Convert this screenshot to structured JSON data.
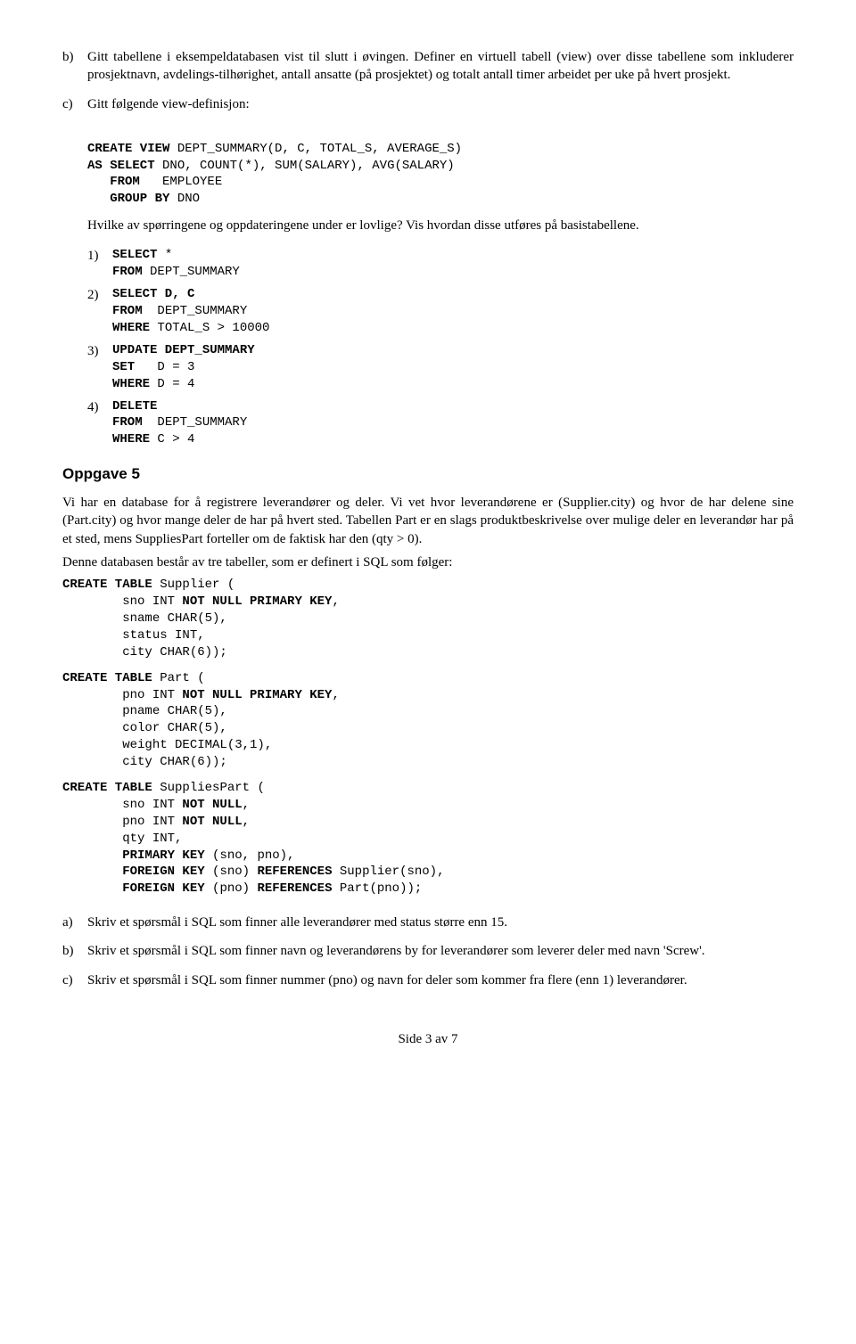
{
  "b": {
    "marker": "b)",
    "text": "Gitt tabellene i eksempeldatabasen vist til slutt i øvingen. Definer en virtuell tabell (view) over disse tabellene som inkluderer prosjektnavn, avdelings-tilhørighet, antall ansatte (på prosjektet) og totalt antall timer arbeidet per uke på hvert prosjekt."
  },
  "c": {
    "marker": "c)",
    "lead": "Gitt følgende view-definisjon:",
    "code": {
      "l1a": "CREATE VIEW",
      "l1b": " DEPT_SUMMARY(D, C, TOTAL_S, AVERAGE_S)",
      "l2a": "AS SELECT",
      "l2b": " DNO, COUNT(*), SUM(SALARY), AVG(SALARY)",
      "l3a": "   FROM",
      "l3b": "   EMPLOYEE",
      "l4a": "   GROUP BY",
      "l4b": " DNO"
    },
    "question": "Hvilke av spørringene og oppdateringene under er lovlige? Vis hvordan disse utføres på basistabellene.",
    "q1": {
      "marker": "1)",
      "l1a": "SELECT",
      "l1b": " *",
      "l2a": "FROM",
      "l2b": " DEPT_SUMMARY"
    },
    "q2": {
      "marker": "2)",
      "l1a": "SELECT D, C",
      "l2a": "FROM",
      "l2b": "  DEPT_SUMMARY",
      "l3a": "WHERE",
      "l3b": " TOTAL_S > 10000"
    },
    "q3": {
      "marker": "3)",
      "l1a": "UPDATE DEPT_SUMMARY",
      "l2a": "SET",
      "l2b": "   D = 3",
      "l3a": "WHERE",
      "l3b": " D = 4"
    },
    "q4": {
      "marker": "4)",
      "l1a": "DELETE",
      "l2a": "FROM",
      "l2b": "  DEPT_SUMMARY",
      "l3a": "WHERE",
      "l3b": " C > 4"
    }
  },
  "opp5": {
    "title": "Oppgave 5",
    "p1": "Vi har en database for å registrere leverandører og deler. Vi vet hvor leverandørene er (Supplier.city) og hvor de har delene sine (Part.city) og hvor mange deler de har på hvert sted. Tabellen Part er en slags produktbeskrivelse over mulige deler en leverandør har på et sted, mens SuppliesPart forteller om de faktisk har den (qty > 0).",
    "p2": "Denne databasen består av tre tabeller, som er definert i SQL som følger:",
    "supplier": {
      "l1a": "CREATE TABLE",
      "l1b": " Supplier (",
      "l2a": "        sno INT ",
      "l2b": "NOT NULL PRIMARY KEY",
      "l2c": ",",
      "l3": "        sname CHAR(5),",
      "l4": "        status INT,",
      "l5": "        city CHAR(6));"
    },
    "part": {
      "l1a": "CREATE TABLE",
      "l1b": " Part (",
      "l2a": "        pno INT ",
      "l2b": "NOT NULL PRIMARY KEY",
      "l2c": ",",
      "l3": "        pname CHAR(5),",
      "l4": "        color CHAR(5),",
      "l5": "        weight DECIMAL(3,1),",
      "l6": "        city CHAR(6));"
    },
    "sp": {
      "l1a": "CREATE TABLE",
      "l1b": " SuppliesPart (",
      "l2a": "        sno INT ",
      "l2b": "NOT NULL",
      "l2c": ",",
      "l3a": "        pno INT ",
      "l3b": "NOT NULL",
      "l3c": ",",
      "l4": "        qty INT,",
      "l5a": "        ",
      "l5b": "PRIMARY KEY",
      "l5c": " (sno, pno),",
      "l6a": "        ",
      "l6b": "FOREIGN KEY",
      "l6c": " (sno) ",
      "l6d": "REFERENCES",
      "l6e": " Supplier(sno),",
      "l7a": "        ",
      "l7b": "FOREIGN KEY",
      "l7c": " (pno) ",
      "l7d": "REFERENCES",
      "l7e": " Part(pno));"
    },
    "a": {
      "marker": "a)",
      "text": "Skriv et spørsmål i SQL som finner alle leverandører med status større enn 15."
    },
    "b": {
      "marker": "b)",
      "text": "Skriv et spørsmål i SQL som finner navn og leverandørens by for leverandører som leverer deler med navn 'Screw'."
    },
    "cc": {
      "marker": "c)",
      "text": "Skriv et spørsmål i SQL som finner nummer (pno) og navn for deler som kommer fra flere (enn 1) leverandører."
    }
  },
  "footer": "Side 3 av 7"
}
